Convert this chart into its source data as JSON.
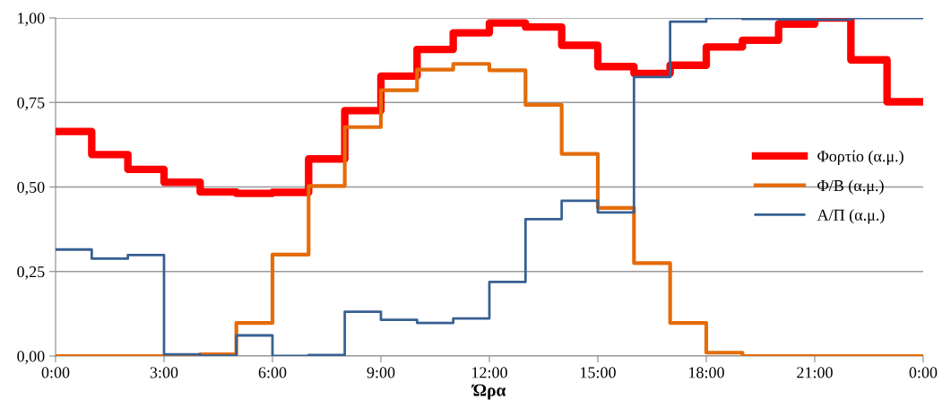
{
  "chart_data": {
    "type": "step",
    "xlabel": "Ώρα",
    "x": [
      0,
      1,
      2,
      3,
      4,
      5,
      6,
      7,
      8,
      9,
      10,
      11,
      12,
      13,
      14,
      15,
      16,
      17,
      18,
      19,
      20,
      21,
      22,
      23,
      24
    ],
    "series": [
      {
        "name": "Φορτίο (α.μ.)",
        "color": "#ff0000",
        "values": [
          0.664,
          0.596,
          0.552,
          0.514,
          0.485,
          0.481,
          0.484,
          0.583,
          0.726,
          0.828,
          0.907,
          0.956,
          0.985,
          0.973,
          0.919,
          0.856,
          0.836,
          0.86,
          0.914,
          0.934,
          0.982,
          1.0,
          0.876,
          0.752,
          0.752
        ]
      },
      {
        "name": "Φ/Β (α.μ.)",
        "color": "#e46c0a",
        "values": [
          0,
          0,
          0,
          0,
          0.005,
          0.098,
          0.3,
          0.503,
          0.677,
          0.786,
          0.847,
          0.864,
          0.845,
          0.743,
          0.598,
          0.438,
          0.275,
          0.098,
          0.01,
          0,
          0,
          0,
          0,
          0,
          0
        ]
      },
      {
        "name": "Α/Π (α.μ.)",
        "color": "#376092",
        "values": [
          0.315,
          0.288,
          0.299,
          0.005,
          0.001,
          0.061,
          0,
          0.003,
          0.131,
          0.107,
          0.098,
          0.111,
          0.219,
          0.405,
          0.459,
          0.425,
          0.825,
          0.989,
          1.0,
          0.997,
          0.996,
          0.995,
          1.0,
          1.0,
          1.0
        ]
      }
    ],
    "xlim": [
      0,
      24
    ],
    "xticks": [
      {
        "value": 0,
        "label": "0:00"
      },
      {
        "value": 3,
        "label": "3:00"
      },
      {
        "value": 6,
        "label": "6:00"
      },
      {
        "value": 9,
        "label": "9:00"
      },
      {
        "value": 12,
        "label": "12:00"
      },
      {
        "value": 15,
        "label": "15:00"
      },
      {
        "value": 18,
        "label": "18:00"
      },
      {
        "value": 21,
        "label": "21:00"
      },
      {
        "value": 24,
        "label": "0:00"
      }
    ],
    "ylim": [
      0,
      1
    ],
    "yticks": [
      {
        "value": 0,
        "label": "0,00"
      },
      {
        "value": 0.25,
        "label": "0,25"
      },
      {
        "value": 0.5,
        "label": "0,50"
      },
      {
        "value": 0.75,
        "label": "0,75"
      },
      {
        "value": 1,
        "label": "1,00"
      }
    ],
    "grid": "y",
    "legend": "right",
    "line_style": "solid",
    "marker": "none"
  }
}
